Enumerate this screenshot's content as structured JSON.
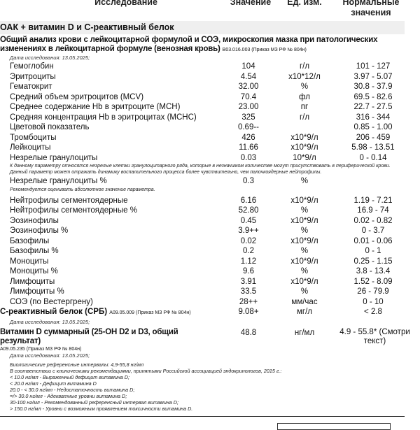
{
  "header": {
    "test": "Исследование",
    "value": "Значение",
    "unit": "Ед. изм.",
    "ref": "Нормальные значения"
  },
  "section_title": "ОАК + витамин D и С-реактивный белок",
  "cbc": {
    "title": "Общий анализ крови с лейкоцитарной формулой и СОЭ, микроскопия мазка при патологических изменениях в лейкоцитарной формуле (венозная кровь)",
    "code": "B03.016.003 (Приказ МЗ РФ № 804н)",
    "date": "Дата исследования: 13.05.2025;",
    "rows": [
      {
        "name": "Гемоглобин",
        "value": "104",
        "unit": "г/л",
        "ref": "101 - 127"
      },
      {
        "name": "Эритроциты",
        "value": "4.54",
        "unit": "х10*12/л",
        "ref": "3.97 - 5.07"
      },
      {
        "name": "Гематокрит",
        "value": "32.00",
        "unit": "%",
        "ref": "30.8 - 37.9"
      },
      {
        "name": "Средний объем эритроцитов (MCV)",
        "value": "70.4",
        "unit": "фл",
        "ref": "69.5 - 82.6"
      },
      {
        "name": "Среднее содержание Hb в эритроците (MCH)",
        "value": "23.00",
        "unit": "пг",
        "ref": "22.7 - 27.5"
      },
      {
        "name": "Средняя концентрация Hb в эритроцитах (MCHC)",
        "value": "325",
        "unit": "г/л",
        "ref": "316 - 344"
      },
      {
        "name": "Цветовой показатель",
        "value": "0.69--",
        "unit": "",
        "ref": "0.85 - 1.00"
      },
      {
        "name": "Тромбоциты",
        "value": "426",
        "unit": "х10*9/л",
        "ref": "206 - 459"
      },
      {
        "name": "Лейкоциты",
        "value": "11.66",
        "unit": "х10*9/л",
        "ref": "5.98 - 13.51"
      },
      {
        "name": "Незрелые гранулоциты",
        "value": "0.03",
        "unit": "10*9/л",
        "ref": "0 - 0.14"
      }
    ],
    "ig_note": "К данному параметру относятся незрелые клетки гранулоцитарного ряда, которые  в незначимом количестве могут присутствовать в периферической крови. Данный параметр может отражать динамику воспалительного процесса более чувствительно, чем палочкоядерные нейтрофилы.",
    "ig_pct": {
      "name": "Незрелые гранулоциты %",
      "value": "0.3",
      "unit": "%",
      "ref": ""
    },
    "ig_pct_note": "Рекомендуется оценивать абсолютное значение параметра.",
    "rows2": [
      {
        "name": "Нейтрофилы сегментоядерные",
        "value": "6.16",
        "unit": "х10*9/л",
        "ref": "1.19 - 7.21"
      },
      {
        "name": "Нейтрофилы сегментоядерные %",
        "value": "52.80",
        "unit": "%",
        "ref": "16.9 - 74"
      },
      {
        "name": "Эозинофилы",
        "value": "0.45",
        "unit": "х10*9/л",
        "ref": "0.02 - 0.82"
      },
      {
        "name": "Эозинофилы %",
        "value": "3.9++",
        "unit": "%",
        "ref": "0 - 3.7"
      },
      {
        "name": "Базофилы",
        "value": "0.02",
        "unit": "х10*9/л",
        "ref": "0.01 - 0.06"
      },
      {
        "name": "Базофилы %",
        "value": "0.2",
        "unit": "%",
        "ref": "0 - 1"
      },
      {
        "name": "Моноциты",
        "value": "1.12",
        "unit": "х10*9/л",
        "ref": "0.25 - 1.15"
      },
      {
        "name": "Моноциты %",
        "value": "9.6",
        "unit": "%",
        "ref": "3.8 - 13.4"
      },
      {
        "name": "Лимфоциты",
        "value": "3.91",
        "unit": "х10*9/л",
        "ref": "1.52 - 8.09"
      },
      {
        "name": "Лимфоциты %",
        "value": "33.5",
        "unit": "%",
        "ref": "26 - 79.9"
      },
      {
        "name": "СОЭ (по Вестергрену)",
        "value": "28++",
        "unit": "мм/час",
        "ref": "0 - 10"
      }
    ]
  },
  "crp": {
    "name": "С-реактивный белок (СРБ)",
    "code": "A09.05.009 (Приказ МЗ РФ № 804н)",
    "value": "9.08+",
    "unit": "мг/л",
    "ref": "< 2.8",
    "date": "Дата исследования: 13.05.2025;"
  },
  "vitd": {
    "name": "Витамин D суммарный (25-OH D2 и D3, общий результат)",
    "code": "A09.05.235 (Приказ МЗ РФ № 804н)",
    "value": "48.8",
    "unit": "нг/мл",
    "ref": "4.9 - 55.8* (Смотри текст)",
    "date": "Дата исследования: 13.05.2025;",
    "notes": [
      "Биологические референсные интервалы: 4,9-55,8 нг/мл",
      "В соответствии с клиническими рекомендациями, принятыми Российской ассоциацией эндокринологов, 2015 г.:",
      "< 10.0 нг/мл - Выраженный дефицит витамина D;",
      "< 20.0 нг/мл - Дефицит витамина D",
      "20.0 - < 30.0 нг/мл - Недостаточность витамина D;",
      "=/> 30.0 нг/мл - Адекватные уровни витамина D;",
      "30-100 нг/мл - Рекомендованный референсный интервал витамина D;",
      "> 150.0 нг/мл - Уровни с возможным проявлением токсичности витамина D."
    ]
  }
}
